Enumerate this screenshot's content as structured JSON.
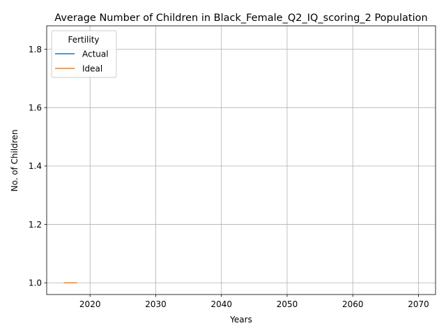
{
  "chart_data": {
    "type": "line",
    "title": "Average Number of Children in Black_Female_Q2_IQ_scoring_2 Population",
    "xlabel": "Years",
    "ylabel": "No. of Children",
    "xlim": [
      2013.4,
      2072.6
    ],
    "ylim": [
      0.96,
      1.88
    ],
    "xticks": [
      2020,
      2030,
      2040,
      2050,
      2060,
      2070
    ],
    "yticks": [
      1.0,
      1.2,
      1.4,
      1.6,
      1.8
    ],
    "xtick_labels": [
      "2020",
      "2030",
      "2040",
      "2050",
      "2060",
      "2070"
    ],
    "ytick_labels": [
      "1.0",
      "1.2",
      "1.4",
      "1.6",
      "1.8"
    ],
    "grid": true,
    "legend": {
      "title": "Fertility",
      "placement": "top-left"
    },
    "series": [
      {
        "name": "Actual",
        "color": "#1f77b4",
        "x": [
          2016,
          2018
        ],
        "y": [
          1.0,
          1.0
        ]
      },
      {
        "name": "Ideal",
        "color": "#ff7f0e",
        "x": [
          2016,
          2018
        ],
        "y": [
          1.0,
          1.0
        ]
      }
    ]
  }
}
